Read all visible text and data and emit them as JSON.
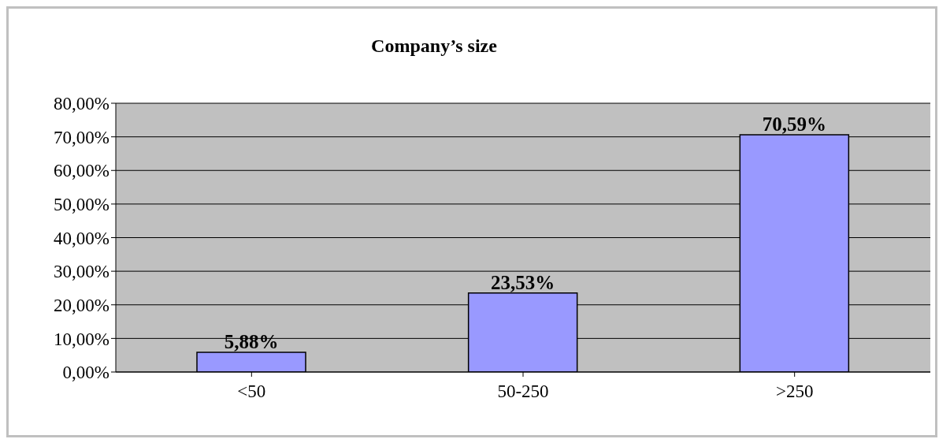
{
  "chart_data": {
    "type": "bar",
    "title": "Company’s size",
    "categories": [
      "<50",
      "50-250",
      ">250"
    ],
    "values": [
      5.88,
      23.53,
      70.59
    ],
    "value_labels": [
      "5,88%",
      "23,53%",
      "70,59%"
    ],
    "color": "#9999ff",
    "ylim": [
      0,
      80
    ],
    "yticks": [
      {
        "value": 0,
        "label": "0,00%"
      },
      {
        "value": 10,
        "label": "10,00%"
      },
      {
        "value": 20,
        "label": "20,00%"
      },
      {
        "value": 30,
        "label": "30,00%"
      },
      {
        "value": 40,
        "label": "40,00%"
      },
      {
        "value": 50,
        "label": "50,00%"
      },
      {
        "value": 60,
        "label": "60,00%"
      },
      {
        "value": 70,
        "label": "70,00%"
      },
      {
        "value": 80,
        "label": "80,00%"
      }
    ],
    "grid": "y",
    "legend": false
  }
}
